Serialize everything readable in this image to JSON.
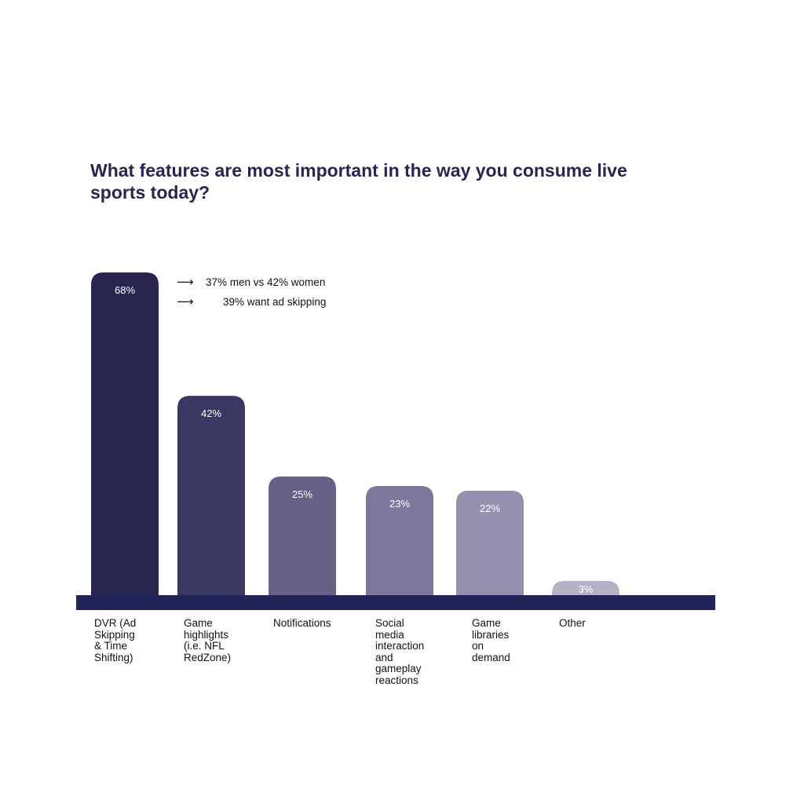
{
  "chart_data": {
    "type": "bar",
    "title_lines": [
      "What features are most important in the way you consume live",
      "sports today?"
    ],
    "categories": [
      [
        "DVR (Ad",
        "Skipping",
        "& Time",
        "Shifting)"
      ],
      [
        "Game",
        "highlights",
        "(i.e. NFL",
        "RedZone)"
      ],
      [
        "Notifications"
      ],
      [
        "Social",
        "media",
        "interaction",
        "and",
        "gameplay",
        "reactions"
      ],
      [
        "Game",
        "libraries",
        "on",
        "demand"
      ],
      [
        "Other"
      ]
    ],
    "values": [
      68,
      42,
      25,
      23,
      22,
      3
    ],
    "value_labels": [
      "68%",
      "42%",
      "25%",
      "23%",
      "22%",
      "3%"
    ],
    "unit": "%",
    "ylim": [
      0,
      68
    ],
    "grid": false,
    "legend": "none",
    "bar_colors": [
      "#282650",
      "#3a3762",
      "#666187",
      "#7c789b",
      "#9491ae",
      "#b4b2c7"
    ],
    "baseline_color": "#222457",
    "annotations": [
      {
        "arrow": "⟶",
        "text": "37% men vs 42% women"
      },
      {
        "arrow": "⟶",
        "text": "39% want ad skipping"
      }
    ]
  }
}
